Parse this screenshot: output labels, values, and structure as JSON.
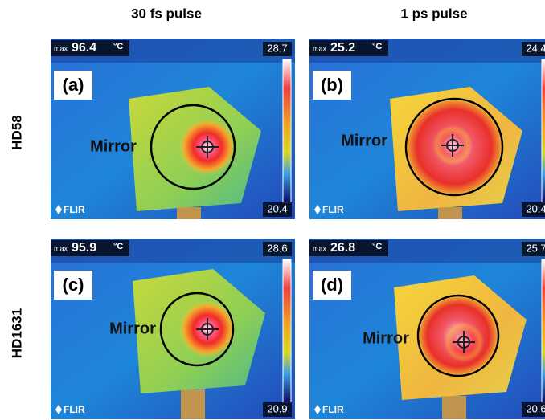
{
  "header": {
    "columns": [
      "30 fs pulse",
      "1 ps pulse"
    ],
    "rows": [
      "HD58",
      "HD1631"
    ]
  },
  "panels": [
    {
      "label": "(a)",
      "max_prefix": "max",
      "max": 96.4,
      "unit": "°C",
      "scale_top": 28.7,
      "scale_bottom": 20.4,
      "object": "Mirror",
      "logo": "FLIR"
    },
    {
      "label": "(b)",
      "max_prefix": "max",
      "max": 25.2,
      "unit": "°C",
      "scale_top": 24.4,
      "scale_bottom": 20.4,
      "object": "Mirror",
      "logo": "FLIR"
    },
    {
      "label": "(c)",
      "max_prefix": "max",
      "max": 95.9,
      "unit": "°C",
      "scale_top": 28.6,
      "scale_bottom": 20.9,
      "object": "Mirror",
      "logo": "FLIR"
    },
    {
      "label": "(d)",
      "max_prefix": "max",
      "max": 26.8,
      "unit": "°C",
      "scale_top": 25.7,
      "scale_bottom": 20.6,
      "object": "Mirror",
      "logo": "FLIR"
    }
  ]
}
